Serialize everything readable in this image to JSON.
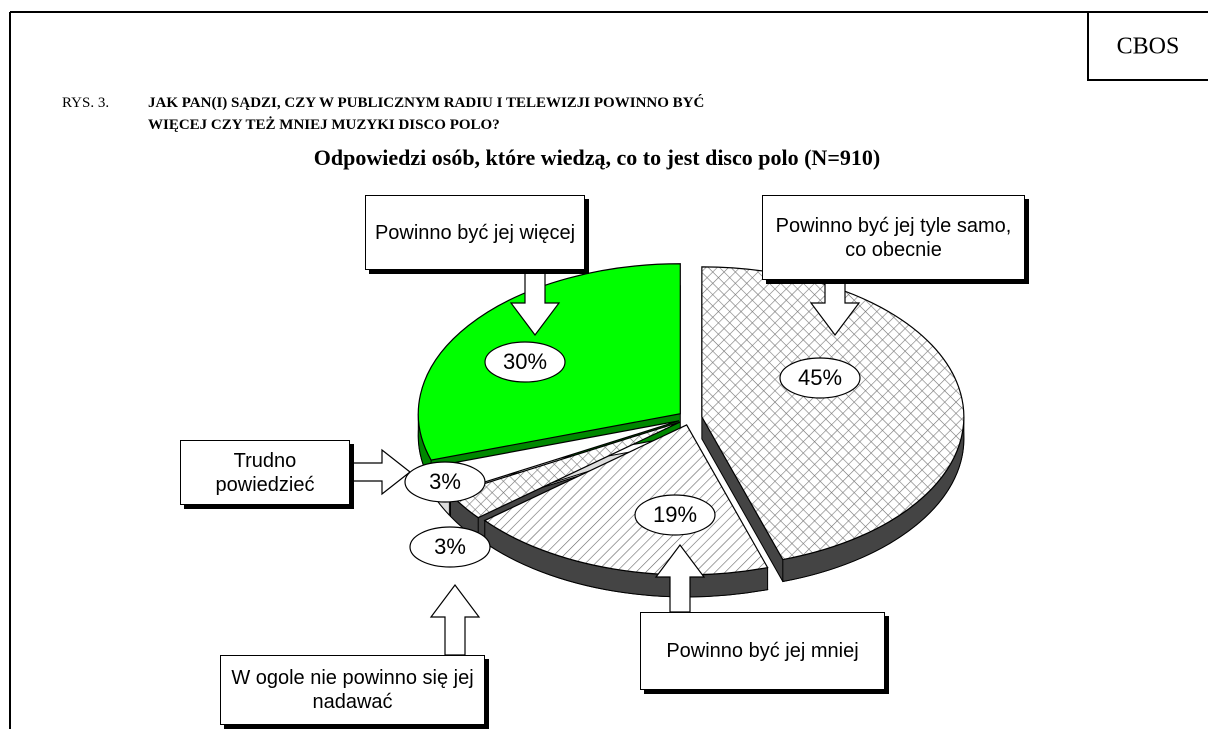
{
  "brand": "CBOS",
  "chart_data": {
    "type": "pie",
    "figure_label": "RYS. 3.",
    "title": "JAK PAN(I) SĄDZI, CZY W  PUBLICZNYM RADIU I  TELEWIZJI POWINNO BYĆ WIĘCEJ CZY TEŻ MNIEJ MUZYKI DISCO POLO?",
    "subtitle": "Odpowiedzi osób, które wiedzą, co to jest disco polo (N=910)",
    "categories": [
      "Powinno być jej tyle samo, co obecnie",
      "Powinno być jej mniej",
      "W ogole nie powinno się jej nadawać",
      "Trudno powiedzieć",
      "Powinno być jej więcej"
    ],
    "values": [
      45,
      19,
      3,
      3,
      30
    ],
    "value_labels": [
      "45%",
      "19%",
      "3%",
      "3%",
      "30%"
    ],
    "colors": [
      "#ffffff",
      "#ffffff",
      "#ffffff",
      "#ffffff",
      "#00ff00"
    ],
    "hatch": [
      "cross",
      "diagonal",
      "cross",
      null,
      null
    ]
  }
}
